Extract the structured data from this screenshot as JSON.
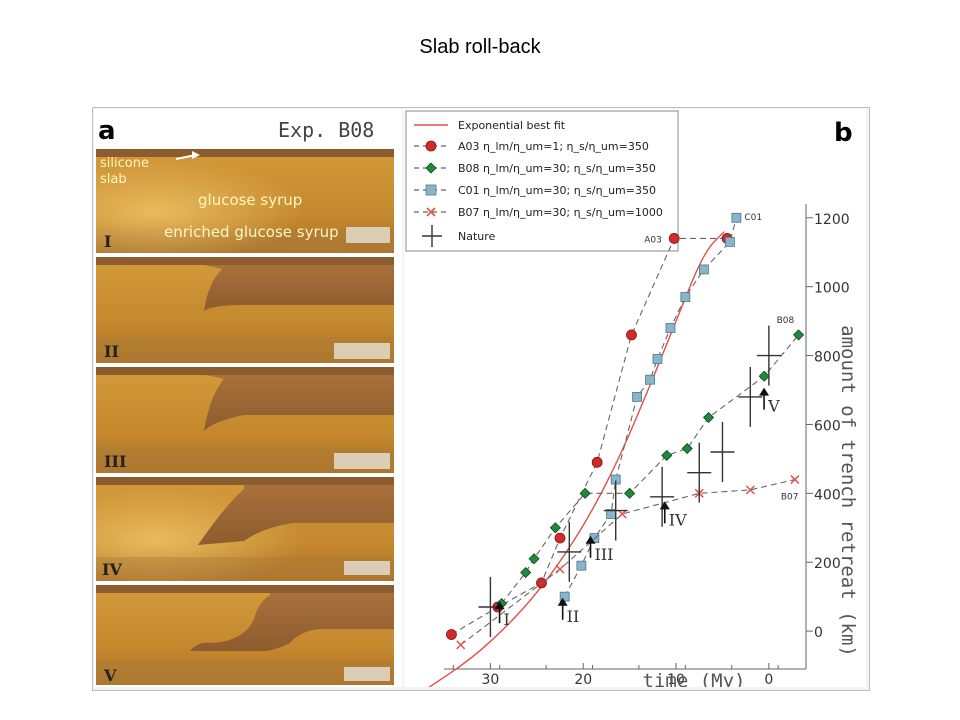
{
  "slide": {
    "title": "Slab roll-back"
  },
  "panel_a": {
    "letter": "a",
    "experiment": "Exp. B08",
    "labels": {
      "slab": "silicone slab",
      "slab_line1": "silicone",
      "slab_line2": "slab",
      "syrup": "glucose syrup",
      "enriched": "enriched glucose syrup"
    },
    "stages": [
      "I",
      "II",
      "III",
      "IV",
      "V"
    ]
  },
  "panel_b": {
    "letter": "b",
    "legend": [
      {
        "label": "Exponential best fit",
        "color": "#e0524a"
      },
      {
        "label": "A03 η_lm/η_um=1; η_s/η_um=350",
        "color": "#d42a26"
      },
      {
        "label": "B08 η_lm/η_um=30; η_s/η_um=350",
        "color": "#1e8a3a"
      },
      {
        "label": "C01 η_lm/η_um=30; η_s/η_um=350",
        "color": "#8ab4c8"
      },
      {
        "label": "B07 η_lm/η_um=30; η_s/η_um=1000",
        "color": "#e0524a"
      },
      {
        "label": "Nature",
        "color": "#333333"
      }
    ],
    "series_labels": {
      "a03": "A03",
      "b08": "B08",
      "c01": "C01",
      "b07": "B07"
    },
    "xlabel": "time (My)",
    "ylabel": "amount of trench retreat (km)"
  },
  "chart_data": {
    "type": "scatter",
    "title": "",
    "xlabel": "time (My)",
    "ylabel": "amount of trench retreat (km)",
    "x_ticks": [
      30,
      20,
      10,
      0
    ],
    "y_ticks": [
      0,
      200,
      400,
      600,
      800,
      1000,
      1200
    ],
    "xlim": [
      35,
      -4
    ],
    "ylim": [
      -110,
      1240
    ],
    "series": [
      {
        "name": "A03",
        "x": [
          34.2,
          29.2,
          24.5,
          22.5,
          18.5,
          14.8,
          10.2,
          4.5
        ],
        "y": [
          -10,
          70,
          140,
          270,
          490,
          860,
          1140,
          1140
        ]
      },
      {
        "name": "B08",
        "x": [
          28.8,
          26.2,
          25.3,
          23.0,
          19.8,
          15.0,
          11.0,
          8.8,
          6.5,
          0.5,
          -3.2
        ],
        "y": [
          80,
          170,
          210,
          300,
          400,
          400,
          510,
          530,
          620,
          740,
          860
        ]
      },
      {
        "name": "C01",
        "x": [
          22.0,
          20.2,
          18.8,
          17.0,
          16.5,
          14.2,
          12.8,
          12.0,
          10.6,
          9.0,
          7.0,
          4.2,
          3.5
        ],
        "y": [
          100,
          190,
          270,
          340,
          440,
          680,
          730,
          790,
          880,
          970,
          1050,
          1130,
          1200
        ]
      },
      {
        "name": "B07",
        "x": [
          33.2,
          22.5,
          15.8,
          7.5,
          2.0,
          -2.8
        ],
        "y": [
          -40,
          180,
          340,
          400,
          410,
          440
        ]
      },
      {
        "name": "Nature",
        "x": [
          30.0,
          21.5,
          16.5,
          11.5,
          7.5,
          5.0,
          2.0,
          0.0
        ],
        "y": [
          70,
          230,
          350,
          390,
          460,
          520,
          680,
          800
        ]
      }
    ],
    "fit": {
      "name": "Exponential best fit",
      "x": [
        37,
        32,
        28,
        25,
        22,
        19,
        16,
        13,
        10,
        7,
        4.8
      ],
      "y": [
        -170,
        -80,
        20,
        110,
        220,
        350,
        510,
        700,
        900,
        1100,
        1160
      ]
    },
    "arrows": [
      {
        "label": "I",
        "x": 28.8,
        "y": 110
      },
      {
        "label": "II",
        "x": 22.0,
        "y": 120
      },
      {
        "label": "III",
        "x": 19.0,
        "y": 300
      },
      {
        "label": "IV",
        "x": 11.0,
        "y": 400
      },
      {
        "label": "V",
        "x": 0.3,
        "y": 730
      }
    ]
  }
}
